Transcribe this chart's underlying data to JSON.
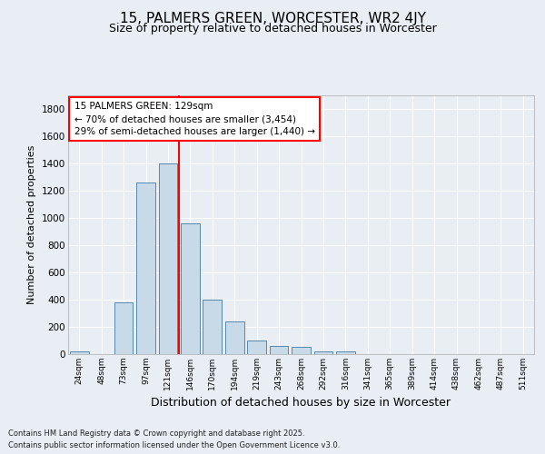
{
  "title": "15, PALMERS GREEN, WORCESTER, WR2 4JY",
  "subtitle": "Size of property relative to detached houses in Worcester",
  "xlabel": "Distribution of detached houses by size in Worcester",
  "ylabel": "Number of detached properties",
  "footnote1": "Contains HM Land Registry data © Crown copyright and database right 2025.",
  "footnote2": "Contains public sector information licensed under the Open Government Licence v3.0.",
  "bins": [
    "24sqm",
    "48sqm",
    "73sqm",
    "97sqm",
    "121sqm",
    "146sqm",
    "170sqm",
    "194sqm",
    "219sqm",
    "243sqm",
    "268sqm",
    "292sqm",
    "316sqm",
    "341sqm",
    "365sqm",
    "389sqm",
    "414sqm",
    "438sqm",
    "462sqm",
    "487sqm",
    "511sqm"
  ],
  "values": [
    20,
    0,
    380,
    1260,
    1400,
    960,
    400,
    240,
    100,
    60,
    55,
    20,
    20,
    0,
    0,
    0,
    0,
    0,
    0,
    0,
    0
  ],
  "bar_color": "#c8d9e8",
  "bar_edge_color": "#5588aa",
  "property_line_x": 4.5,
  "property_line_color": "red",
  "annotation_box_text": "15 PALMERS GREEN: 129sqm\n← 70% of detached houses are smaller (3,454)\n29% of semi-detached houses are larger (1,440) →",
  "ylim": [
    0,
    1900
  ],
  "yticks": [
    0,
    200,
    400,
    600,
    800,
    1000,
    1200,
    1400,
    1600,
    1800
  ],
  "background_color": "#e8eef4",
  "plot_bg_color": "#e8eef4",
  "title_fontsize": 11,
  "subtitle_fontsize": 9,
  "annotation_fontsize": 7.5,
  "ylabel_fontsize": 8,
  "xlabel_fontsize": 9
}
